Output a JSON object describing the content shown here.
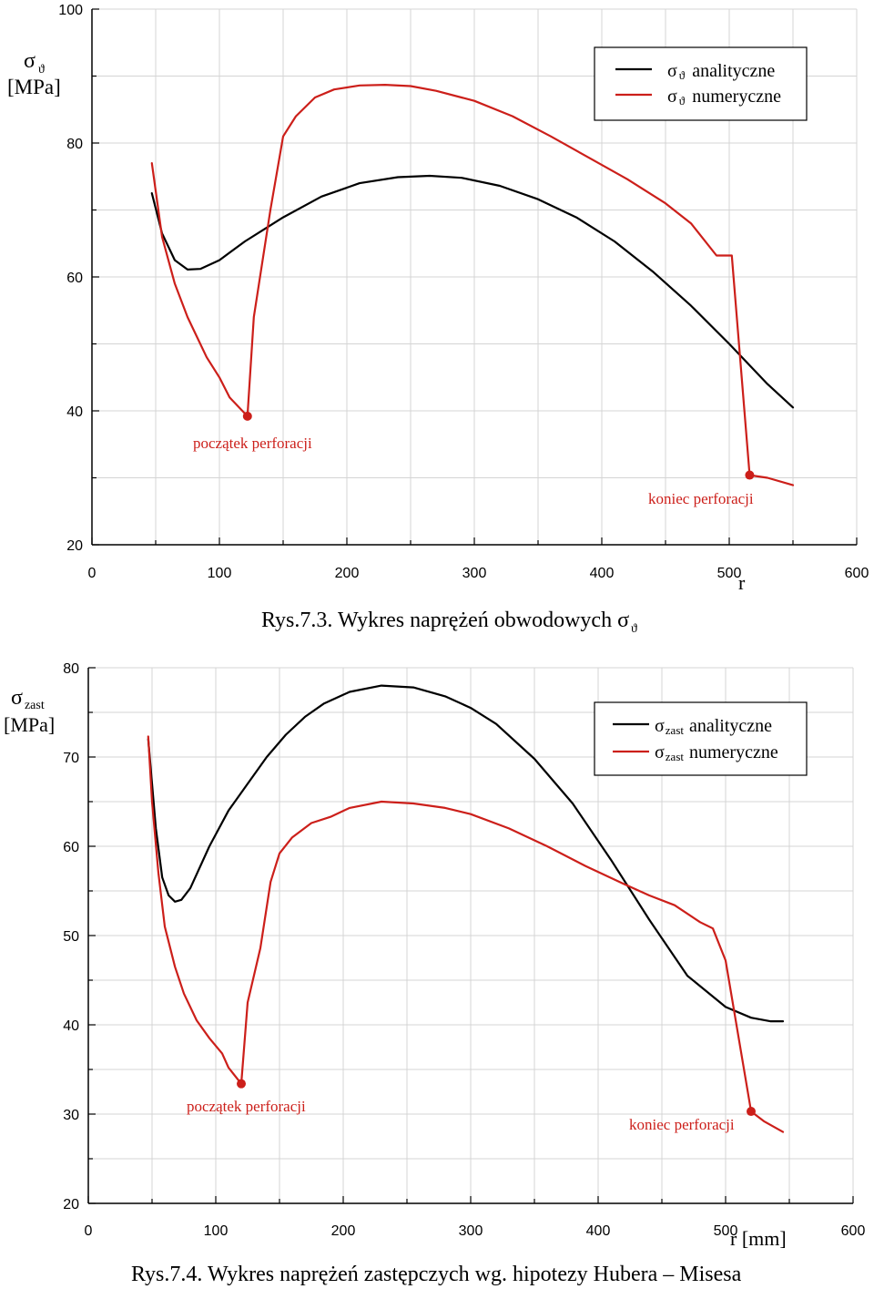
{
  "chart_data": [
    {
      "type": "line",
      "caption": "Rys.7.3. Wykres naprężeń obwodowych σ",
      "caption_symbol": "ϑ",
      "ylabel_symbol": "σ",
      "ylabel_subscript": "ϑ",
      "ylabel_unit": "[MPa]",
      "xlabel": "r",
      "xlim": [
        0,
        600
      ],
      "ylim": [
        20,
        100
      ],
      "xticks": [
        "0",
        "100",
        "200",
        "300",
        "400",
        "500",
        "600"
      ],
      "yticks": [
        "20",
        "40",
        "60",
        "80",
        "100"
      ],
      "grid": true,
      "legend_position": "top-right",
      "series": [
        {
          "name": "σ ϑ analityczne",
          "legend_symbol": "σ",
          "legend_sub": "ϑ",
          "legend_text": "analityczne",
          "color": "#000000",
          "x": [
            47,
            55,
            65,
            75,
            85,
            100,
            120,
            150,
            180,
            210,
            240,
            265,
            290,
            320,
            350,
            380,
            410,
            440,
            470,
            500,
            530,
            550
          ],
          "y": [
            72.5,
            66.5,
            62.5,
            61.1,
            61.2,
            62.5,
            65.3,
            68.9,
            72.0,
            74.0,
            74.9,
            75.1,
            74.8,
            73.6,
            71.6,
            68.9,
            65.3,
            60.8,
            55.7,
            50.0,
            44.0,
            40.5
          ]
        },
        {
          "name": "σ ϑ numeryczne",
          "legend_symbol": "σ",
          "legend_sub": "ϑ",
          "legend_text": "numeryczne",
          "color": "#cc1f1a",
          "x": [
            47,
            55,
            65,
            75,
            90,
            100,
            108,
            122,
            127,
            140,
            150,
            160,
            175,
            190,
            210,
            230,
            250,
            270,
            300,
            330,
            360,
            390,
            420,
            450,
            470,
            490,
            502,
            516,
            530,
            550
          ],
          "y": [
            77.0,
            66.0,
            59.0,
            54.0,
            48.0,
            45.0,
            42.0,
            39.2,
            54.0,
            70.0,
            81.0,
            84.0,
            86.8,
            88.0,
            88.6,
            88.7,
            88.5,
            87.8,
            86.3,
            84.0,
            81.0,
            77.8,
            74.6,
            71.0,
            68.0,
            63.2,
            63.2,
            30.4,
            30.0,
            28.9
          ]
        }
      ],
      "markers": [
        {
          "x": 122,
          "y": 39.2,
          "label": "początek perforacji"
        },
        {
          "x": 516,
          "y": 30.4,
          "label": "koniec perforacji"
        }
      ]
    },
    {
      "type": "line",
      "caption": "Rys.7.4. Wykres naprężeń zastępczych wg. hipotezy Hubera – Misesa",
      "ylabel_symbol": "σ",
      "ylabel_subscript": "zast",
      "ylabel_unit": "[MPa]",
      "xlabel": "r [mm]",
      "xlim": [
        0,
        600
      ],
      "ylim": [
        20,
        80
      ],
      "xticks": [
        "0",
        "100",
        "200",
        "300",
        "400",
        "500",
        "600"
      ],
      "yticks": [
        "20",
        "30",
        "40",
        "50",
        "60",
        "70",
        "80"
      ],
      "grid": true,
      "legend_position": "top-right",
      "series": [
        {
          "name": "σ zast analityczne",
          "legend_symbol": "σ",
          "legend_sub": "zast",
          "legend_text": "analityczne",
          "color": "#000000",
          "x": [
            47,
            53,
            58,
            63,
            68,
            73,
            80,
            95,
            110,
            125,
            140,
            155,
            170,
            185,
            205,
            230,
            255,
            280,
            300,
            320,
            350,
            380,
            410,
            440,
            470,
            500,
            520,
            535,
            545
          ],
          "y": [
            72.0,
            62.0,
            56.5,
            54.5,
            53.8,
            54.0,
            55.3,
            60.0,
            64.0,
            67.0,
            70.0,
            72.5,
            74.5,
            76.0,
            77.3,
            78.0,
            77.8,
            76.8,
            75.5,
            73.7,
            69.8,
            64.8,
            58.5,
            51.8,
            45.5,
            42.0,
            40.8,
            40.4,
            40.4
          ]
        },
        {
          "name": "σ zast numeryczne",
          "legend_symbol": "σ",
          "legend_sub": "zast",
          "legend_text": "numeryczne",
          "color": "#cc1f1a",
          "x": [
            47,
            50,
            55,
            60,
            68,
            75,
            85,
            95,
            105,
            110,
            120,
            125,
            135,
            143,
            150,
            160,
            175,
            190,
            205,
            230,
            255,
            280,
            300,
            330,
            360,
            390,
            420,
            440,
            460,
            480,
            490,
            500,
            520,
            530,
            545
          ],
          "y": [
            72.3,
            65.0,
            57.0,
            51.0,
            46.5,
            43.5,
            40.5,
            38.5,
            36.8,
            35.2,
            33.4,
            42.5,
            48.6,
            56.0,
            59.2,
            61.0,
            62.6,
            63.3,
            64.3,
            65.0,
            64.8,
            64.3,
            63.6,
            62.0,
            60.0,
            57.8,
            55.8,
            54.5,
            53.4,
            51.5,
            50.8,
            47.2,
            30.3,
            29.2,
            28.0
          ]
        }
      ],
      "markers": [
        {
          "x": 120,
          "y": 33.4,
          "label": "początek perforacji"
        },
        {
          "x": 520,
          "y": 30.3,
          "label": "koniec perforacji"
        }
      ]
    }
  ]
}
